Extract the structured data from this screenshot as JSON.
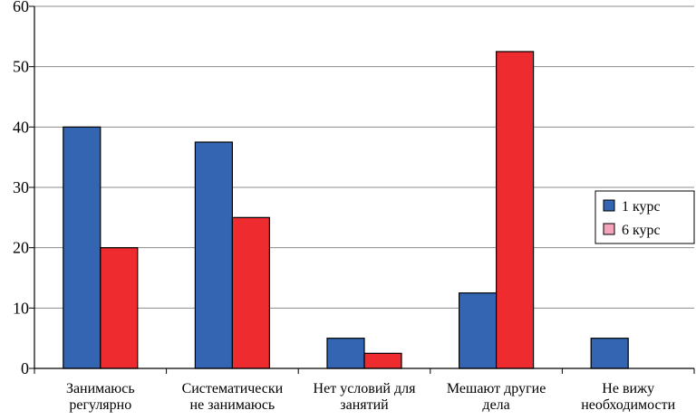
{
  "chart_data": {
    "type": "bar",
    "categories": [
      [
        "Занимаюсь",
        "регулярно"
      ],
      [
        "Систематически",
        "не занимаюсь"
      ],
      [
        "Нет условий для",
        "занятий"
      ],
      [
        "Мешают другие",
        "дела"
      ],
      [
        "Не вижу",
        "необходимости"
      ]
    ],
    "series": [
      {
        "name": "1 курс",
        "values": [
          40,
          37.5,
          5,
          12.5,
          5
        ]
      },
      {
        "name": "6 курс",
        "values": [
          20,
          25,
          2.5,
          52.5,
          0
        ]
      }
    ],
    "ylim": [
      0,
      60
    ],
    "yticks": [
      "0",
      "10",
      "20",
      "30",
      "40",
      "50",
      "60"
    ],
    "grid": true,
    "legend_position": "right",
    "colors": [
      "#3465b3",
      "#ee2b2f"
    ],
    "legend_swatch_colors": [
      "#3465b3",
      "#f4a3b8"
    ]
  }
}
